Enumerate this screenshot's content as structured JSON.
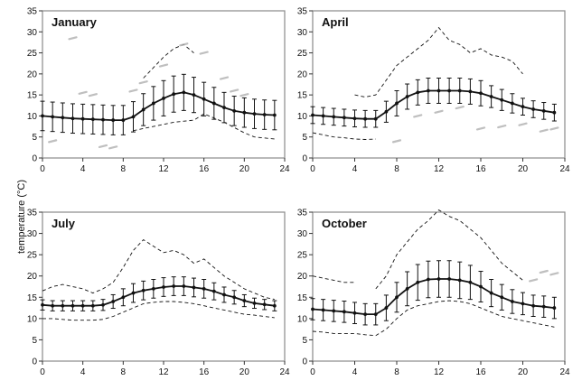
{
  "ylabel": "temperature (°C)",
  "colors": {
    "line": "#111111",
    "frame": "#8a8a8a",
    "grey": "#b0b0b0"
  },
  "chart_data": [
    {
      "type": "line",
      "title": "January",
      "xlim": [
        0,
        24
      ],
      "ylim": [
        0,
        35
      ],
      "xticks": [
        0,
        4,
        8,
        12,
        16,
        20,
        24
      ],
      "yticks": [
        0,
        5,
        10,
        15,
        20,
        25,
        30,
        35
      ],
      "grid": false,
      "series": [
        {
          "style": "mean-with-error-bars",
          "x": [
            0,
            1,
            2,
            3,
            4,
            5,
            6,
            7,
            8,
            9,
            10,
            11,
            12,
            13,
            14,
            15,
            16,
            17,
            18,
            19,
            20,
            21,
            22,
            23
          ],
          "y": [
            10,
            9.8,
            9.6,
            9.4,
            9.3,
            9.2,
            9.1,
            9,
            9,
            9.8,
            11.5,
            13,
            14.2,
            15.2,
            15.6,
            15,
            14,
            13,
            12,
            11.2,
            10.8,
            10.5,
            10.3,
            10.2
          ],
          "err": [
            3.5,
            3.5,
            3.5,
            3.5,
            3.5,
            3.5,
            3.5,
            3.5,
            3.5,
            3.6,
            3.8,
            4,
            4.2,
            4.3,
            4.3,
            4.2,
            4,
            3.8,
            3.6,
            3.5,
            3.5,
            3.5,
            3.5,
            3.5
          ]
        },
        {
          "style": "dashed-max",
          "x": [
            10,
            12,
            13,
            14,
            15
          ],
          "y": [
            19,
            24,
            26,
            27,
            25
          ]
        },
        {
          "style": "dashed-min",
          "x": [
            9,
            11,
            13,
            15,
            16,
            18,
            20,
            21,
            23
          ],
          "y": [
            6.5,
            7.5,
            8.5,
            9,
            10.5,
            8.5,
            6,
            5,
            4.5
          ]
        },
        {
          "style": "grey-fragments",
          "x": [
            1,
            3,
            4,
            5,
            6,
            7,
            9,
            10,
            12,
            14,
            16,
            18,
            19,
            20
          ],
          "y": [
            4,
            28.5,
            15.5,
            15,
            2.8,
            2.5,
            16,
            18,
            22,
            27,
            25,
            19,
            16,
            15
          ]
        }
      ]
    },
    {
      "type": "line",
      "title": "April",
      "xlim": [
        0,
        24
      ],
      "ylim": [
        0,
        35
      ],
      "xticks": [
        0,
        4,
        8,
        12,
        16,
        20,
        24
      ],
      "yticks": [
        0,
        5,
        10,
        15,
        20,
        25,
        30,
        35
      ],
      "grid": false,
      "series": [
        {
          "style": "mean-with-error-bars",
          "x": [
            0,
            1,
            2,
            3,
            4,
            5,
            6,
            7,
            8,
            9,
            10,
            11,
            12,
            13,
            14,
            15,
            16,
            17,
            18,
            19,
            20,
            21,
            22,
            23
          ],
          "y": [
            10.2,
            10,
            9.8,
            9.6,
            9.4,
            9.3,
            9.3,
            11,
            13,
            14.6,
            15.6,
            16,
            16,
            16,
            16,
            15.8,
            15.4,
            14.6,
            13.8,
            13,
            12.2,
            11.6,
            11.2,
            10.8
          ],
          "err": [
            2,
            2,
            2,
            2,
            2,
            2,
            2,
            2.5,
            3,
            3,
            3,
            3,
            3,
            3,
            3,
            3,
            3,
            2.6,
            2.5,
            2.3,
            2,
            2,
            2,
            2
          ]
        },
        {
          "style": "dashed-max",
          "x": [
            4,
            5,
            6,
            7,
            8,
            9,
            10,
            11,
            12,
            13,
            14,
            15,
            16,
            17,
            18,
            19,
            20
          ],
          "y": [
            15,
            14.5,
            15,
            18.5,
            22,
            24,
            26,
            28,
            31,
            28,
            27,
            25,
            26,
            24.5,
            24,
            23,
            20
          ]
        },
        {
          "style": "dashed-min",
          "x": [
            0,
            1,
            2,
            3,
            4,
            5,
            6
          ],
          "y": [
            6,
            5.5,
            5,
            4.8,
            4.5,
            4.4,
            4.5
          ]
        },
        {
          "style": "grey-fragments",
          "x": [
            8,
            10,
            12,
            14,
            16,
            18,
            20,
            22,
            23
          ],
          "y": [
            4,
            10,
            11,
            12,
            7,
            7.5,
            8,
            6.5,
            7
          ]
        }
      ]
    },
    {
      "type": "line",
      "title": "July",
      "xlim": [
        0,
        24
      ],
      "ylim": [
        0,
        35
      ],
      "xticks": [
        0,
        4,
        8,
        12,
        16,
        20,
        24
      ],
      "yticks": [
        0,
        5,
        10,
        15,
        20,
        25,
        30,
        35
      ],
      "grid": false,
      "series": [
        {
          "style": "mean-with-error-bars",
          "x": [
            0,
            1,
            2,
            3,
            4,
            5,
            6,
            7,
            8,
            9,
            10,
            11,
            12,
            13,
            14,
            15,
            16,
            17,
            18,
            19,
            20,
            21,
            22,
            23
          ],
          "y": [
            13.2,
            13,
            13,
            13,
            13,
            13,
            13.2,
            14,
            15,
            16,
            16.6,
            17,
            17.4,
            17.6,
            17.6,
            17.3,
            17,
            16.4,
            15.6,
            15,
            14.2,
            13.6,
            13.3,
            13
          ],
          "err": [
            1.2,
            1.2,
            1.2,
            1.2,
            1.2,
            1.2,
            1.3,
            1.6,
            2,
            2.2,
            2.2,
            2.2,
            2.2,
            2.2,
            2.2,
            2.2,
            2.2,
            2,
            1.8,
            1.6,
            1.4,
            1.2,
            1.2,
            1.2
          ]
        },
        {
          "style": "dashed-max",
          "x": [
            0,
            1,
            2,
            3,
            4,
            5,
            6,
            7,
            8,
            9,
            10,
            11,
            12,
            13,
            14,
            15,
            16,
            17,
            18,
            19,
            20,
            21,
            22,
            23
          ],
          "y": [
            16.5,
            17.5,
            18,
            17.5,
            17,
            16,
            17,
            18.5,
            22,
            26,
            28.5,
            27,
            25.5,
            26,
            25,
            23,
            24,
            22,
            20,
            18.5,
            17,
            16,
            15,
            14.5
          ]
        },
        {
          "style": "dashed-min",
          "x": [
            0,
            1,
            2,
            3,
            4,
            5,
            6,
            7,
            8,
            9,
            10,
            11,
            12,
            13,
            14,
            15,
            16,
            17,
            18,
            19,
            20,
            21,
            22,
            23
          ],
          "y": [
            10,
            10,
            9.8,
            9.6,
            9.6,
            9.6,
            9.8,
            10.5,
            11.5,
            12.5,
            13.5,
            13.8,
            14,
            14,
            13.8,
            13.5,
            13,
            12.5,
            12,
            11.5,
            11,
            10.8,
            10.5,
            10.2
          ]
        }
      ]
    },
    {
      "type": "line",
      "title": "October",
      "xlim": [
        0,
        24
      ],
      "ylim": [
        0,
        35
      ],
      "xticks": [
        0,
        4,
        8,
        12,
        16,
        20,
        24
      ],
      "yticks": [
        0,
        5,
        10,
        15,
        20,
        25,
        30,
        35
      ],
      "grid": false,
      "series": [
        {
          "style": "mean-with-error-bars",
          "x": [
            0,
            1,
            2,
            3,
            4,
            5,
            6,
            7,
            8,
            9,
            10,
            11,
            12,
            13,
            14,
            15,
            16,
            17,
            18,
            19,
            20,
            21,
            22,
            23
          ],
          "y": [
            12.2,
            12,
            11.8,
            11.6,
            11.3,
            11,
            11,
            12.5,
            15,
            17,
            18.5,
            19.2,
            19.3,
            19.3,
            19,
            18.5,
            17.5,
            16,
            15,
            14,
            13.5,
            13,
            12.8,
            12.5
          ],
          "err": [
            2.5,
            2.5,
            2.5,
            2.5,
            2.5,
            2.5,
            2.5,
            3,
            3.5,
            4,
            4.2,
            4.3,
            4.3,
            4.3,
            4.3,
            4,
            3.6,
            3.2,
            3,
            2.8,
            2.6,
            2.5,
            2.5,
            2.5
          ]
        },
        {
          "style": "dashed-max",
          "x": [
            6,
            7,
            8,
            9,
            10,
            11,
            12,
            13,
            14,
            15,
            16,
            17,
            18,
            19,
            20
          ],
          "y": [
            17,
            20,
            25,
            28,
            31,
            33,
            35.5,
            34,
            33,
            31,
            29,
            26,
            23,
            21,
            19
          ]
        },
        {
          "style": "dashed-max",
          "x": [
            0,
            1,
            2,
            3,
            4
          ],
          "y": [
            20,
            19.5,
            19,
            18.5,
            18.5
          ]
        },
        {
          "style": "dashed-min",
          "x": [
            0,
            1,
            2,
            3,
            4,
            5,
            6,
            7,
            8,
            9,
            10,
            11,
            12,
            13,
            14,
            15,
            16,
            17,
            18,
            19,
            20,
            21,
            22,
            23
          ],
          "y": [
            7,
            6.8,
            6.5,
            6.5,
            6.5,
            6.2,
            6,
            7.5,
            10,
            12,
            13,
            13.5,
            14,
            14.2,
            14,
            13.5,
            12.5,
            11.5,
            10.5,
            10,
            9.5,
            9,
            8.5,
            8
          ]
        },
        {
          "style": "grey-fragments",
          "x": [
            21,
            22,
            23
          ],
          "y": [
            19,
            21,
            20.5
          ]
        }
      ]
    }
  ]
}
